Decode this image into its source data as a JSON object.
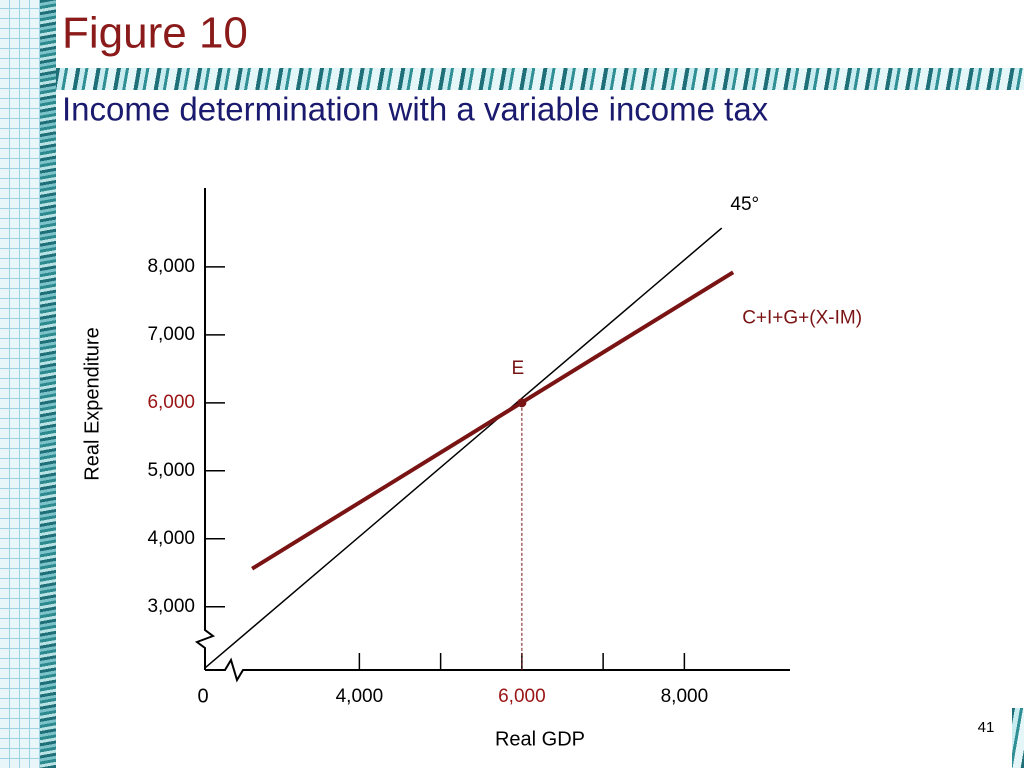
{
  "title": "Figure 10",
  "subtitle": "Income determination with a variable income tax",
  "page_number": "41",
  "chart_data": {
    "type": "line",
    "xlabel": "Real GDP",
    "ylabel": "Real Expenditure",
    "xlim": [
      2100,
      9300
    ],
    "ylim": [
      2070,
      9160
    ],
    "xticks": [
      {
        "value": 4000,
        "label": "4,000"
      },
      {
        "value": 6000,
        "label": "6,000"
      },
      {
        "value": 8000,
        "label": "8,000"
      }
    ],
    "xminor_ticks": [
      5000,
      7000
    ],
    "yticks": [
      {
        "value": 3000,
        "label": "3,000"
      },
      {
        "value": 4000,
        "label": "4,000"
      },
      {
        "value": 5000,
        "label": "5,000"
      },
      {
        "value": 6000,
        "label": "6,000"
      },
      {
        "value": 7000,
        "label": "7,000"
      },
      {
        "value": 8000,
        "label": "8,000"
      }
    ],
    "origin_label": "0",
    "series": [
      {
        "name": "45°",
        "color": "#000000",
        "x": [
          2100,
          8460
        ],
        "values": [
          2100,
          8570
        ]
      },
      {
        "name": "C+I+G+(X-IM)",
        "color": "#7a1414",
        "x": [
          2680,
          8600
        ],
        "values": [
          3560,
          7920
        ]
      }
    ],
    "points": [
      {
        "label": "E",
        "x": 6000,
        "y": 6000,
        "color": "#7a1414"
      }
    ],
    "highlight_color": "#9a1414"
  }
}
